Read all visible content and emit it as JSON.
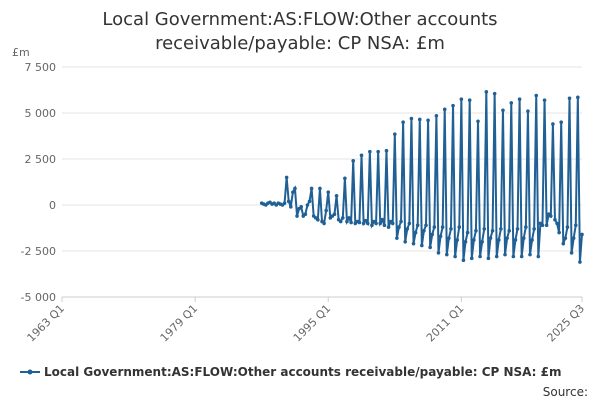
{
  "chart_data": {
    "type": "line",
    "title": "Local Government:AS:FLOW:Other accounts receivable/payable: CP NSA: £m",
    "y_unit": "£m",
    "source": "Source:",
    "categories": [
      "1963 Q1",
      null,
      null,
      null,
      null,
      null,
      null,
      null,
      null,
      null,
      null,
      null,
      null,
      null,
      null,
      null,
      null,
      null,
      null,
      null,
      null,
      null,
      null,
      null,
      null,
      null,
      null,
      null,
      null,
      null,
      null,
      null,
      null,
      null,
      null,
      null,
      null,
      null,
      null,
      null,
      null,
      null,
      null,
      null,
      null,
      null,
      null,
      null,
      null,
      null,
      null,
      null,
      null,
      null,
      null,
      null,
      null,
      null,
      null,
      null,
      null,
      null,
      null,
      null,
      "1979 Q1",
      null,
      null,
      null,
      null,
      null,
      null,
      null,
      null,
      null,
      null,
      null,
      null,
      null,
      null,
      null,
      null,
      null,
      null,
      null,
      null,
      null,
      null,
      null,
      null,
      null,
      null,
      null,
      null,
      null,
      null,
      null,
      null,
      null,
      null,
      null,
      null,
      null,
      null,
      null,
      null,
      null,
      null,
      null,
      null,
      null,
      null,
      null,
      null,
      null,
      null,
      null,
      null,
      null,
      null,
      null,
      null,
      null,
      null,
      null,
      null,
      null,
      null,
      null,
      "1995 Q1",
      null,
      null,
      null,
      null,
      null,
      null,
      null,
      null,
      null,
      null,
      null,
      null,
      null,
      null,
      null,
      null,
      null,
      null,
      null,
      null,
      null,
      null,
      null,
      null,
      null,
      null,
      null,
      null,
      null,
      null,
      null,
      null,
      null,
      null,
      null,
      null,
      null,
      null,
      null,
      null,
      null,
      null,
      null,
      null,
      null,
      null,
      null,
      null,
      null,
      null,
      null,
      null,
      null,
      null,
      null,
      null,
      null,
      null,
      null,
      null,
      null,
      null,
      null,
      "2011 Q1",
      null,
      null,
      null,
      null,
      null,
      null,
      null,
      null,
      null,
      null,
      null,
      null,
      null,
      null,
      null,
      null,
      null,
      null,
      null,
      null,
      null,
      null,
      null,
      null,
      null,
      null,
      null,
      null,
      null,
      null,
      null,
      null,
      null,
      null,
      null,
      null,
      null,
      null,
      null,
      null,
      null,
      null,
      null,
      null,
      null,
      null,
      null,
      null,
      null,
      null,
      null,
      null,
      null,
      null,
      null,
      null,
      null,
      "2025 Q3"
    ],
    "series": [
      {
        "name": "Local Government:AS:FLOW:Other accounts receivable/payable: CP NSA: £m",
        "color": "#206095",
        "values": [
          null,
          null,
          null,
          null,
          null,
          null,
          null,
          null,
          null,
          null,
          null,
          null,
          null,
          null,
          null,
          null,
          null,
          null,
          null,
          null,
          null,
          null,
          null,
          null,
          null,
          null,
          null,
          null,
          null,
          null,
          null,
          null,
          null,
          null,
          null,
          null,
          null,
          null,
          null,
          null,
          null,
          null,
          null,
          null,
          null,
          null,
          null,
          null,
          null,
          null,
          null,
          null,
          null,
          null,
          null,
          null,
          null,
          null,
          null,
          null,
          null,
          null,
          null,
          null,
          null,
          null,
          null,
          null,
          null,
          null,
          null,
          null,
          null,
          null,
          null,
          null,
          null,
          null,
          null,
          null,
          null,
          null,
          null,
          null,
          null,
          null,
          null,
          null,
          null,
          null,
          null,
          null,
          null,
          null,
          null,
          null,
          100,
          50,
          0,
          100,
          150,
          50,
          100,
          0,
          100,
          50,
          0,
          100,
          1500,
          200,
          -100,
          700,
          900,
          -600,
          -200,
          -100,
          -600,
          -500,
          0,
          200,
          900,
          -600,
          -700,
          -800,
          900,
          -900,
          -1000,
          -300,
          700,
          -700,
          -600,
          -500,
          500,
          -800,
          -900,
          -700,
          1450,
          -900,
          -700,
          -950,
          2400,
          -1000,
          -900,
          -950,
          2700,
          -1000,
          -850,
          -1000,
          2900,
          -1100,
          -900,
          -1000,
          2900,
          -1000,
          -800,
          -1100,
          2950,
          -1200,
          -900,
          -1000,
          3850,
          -1800,
          -1200,
          -900,
          4500,
          -2000,
          -1300,
          -1000,
          4700,
          -2100,
          -1500,
          -1100,
          4650,
          -2200,
          -1400,
          -1100,
          4600,
          -2300,
          -1600,
          -1200,
          4850,
          -2600,
          -1700,
          -1200,
          5200,
          -2700,
          -1800,
          -1300,
          5400,
          -2800,
          -1900,
          -1200,
          5750,
          -3000,
          -2000,
          -1500,
          5700,
          -2900,
          -1900,
          -1400,
          4550,
          -2800,
          -2000,
          -1300,
          6150,
          -2900,
          -1800,
          -1400,
          6050,
          -2800,
          -1900,
          -1300,
          5150,
          -2700,
          -1800,
          -1400,
          5550,
          -2800,
          -1900,
          -1300,
          5750,
          -2800,
          -1800,
          -1200,
          5100,
          -2700,
          -1900,
          -1300,
          5950,
          -2800,
          -1000,
          -1100,
          5700,
          -1100,
          -500,
          -600,
          4400,
          -800,
          -1000,
          -1500,
          4500,
          -2100,
          -1800,
          -1200,
          5800,
          -2600,
          -1800,
          -1100,
          5850,
          -3100,
          -1600
        ]
      }
    ],
    "ylim": [
      -5000,
      7500
    ],
    "yticks": [
      {
        "value": -5000,
        "label": "-5 000"
      },
      {
        "value": -2500,
        "label": "-2 500"
      },
      0,
      {
        "value": 2500,
        "label": "2 500"
      },
      {
        "value": 5000,
        "label": "5 000"
      },
      {
        "value": 7500,
        "label": "7 500"
      }
    ],
    "grid": true
  }
}
